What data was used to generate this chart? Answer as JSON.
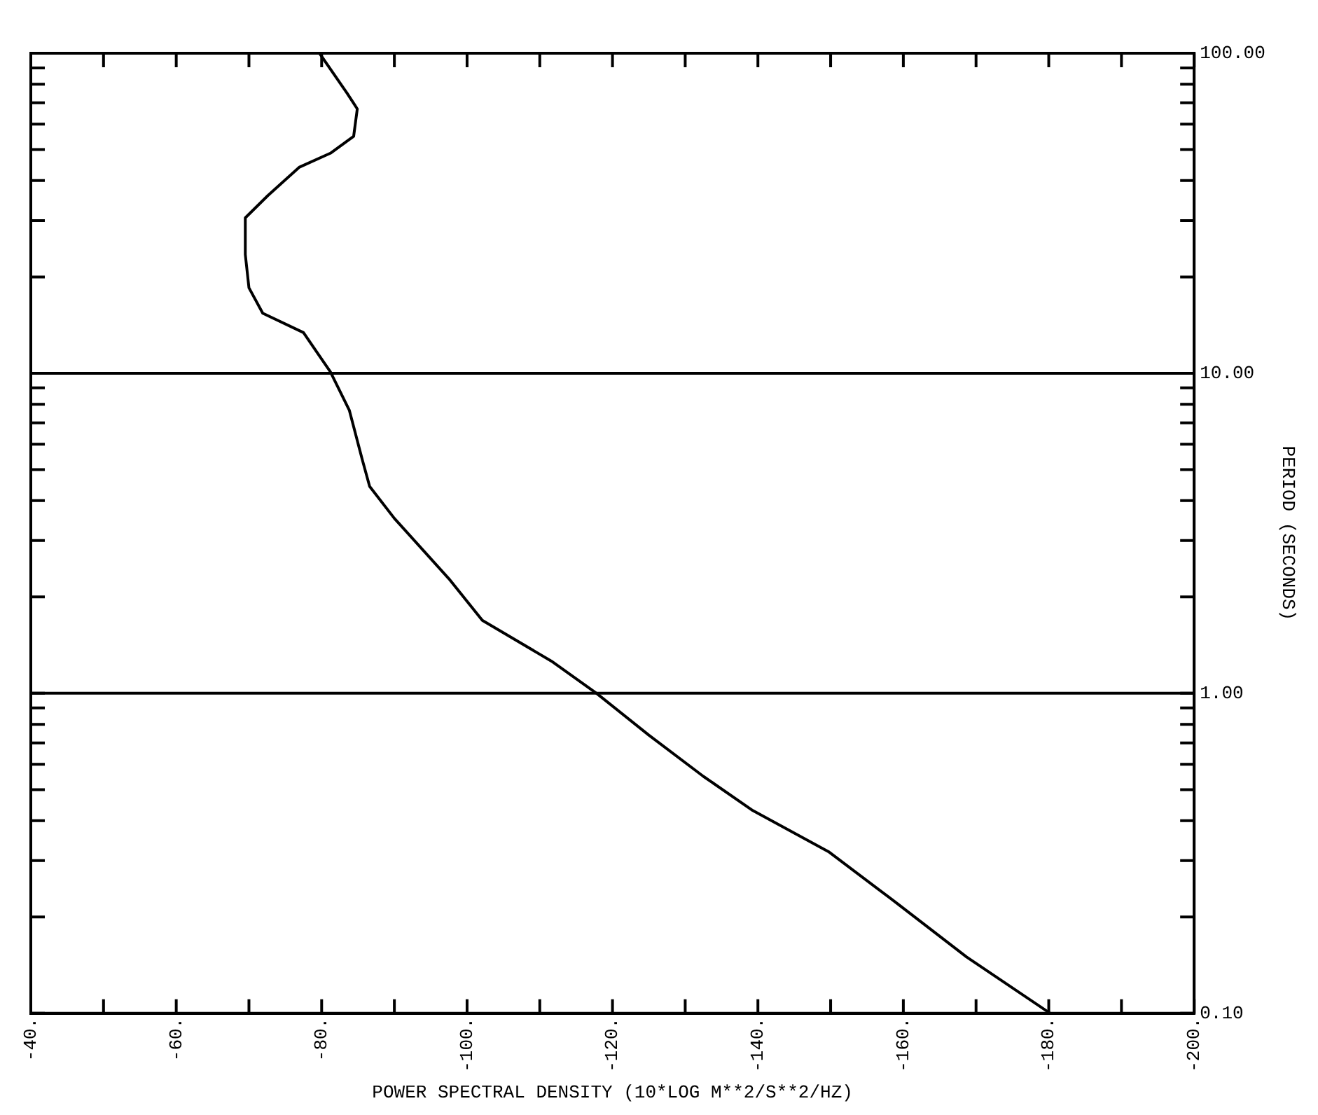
{
  "chart_data": {
    "type": "line",
    "xlabel": "POWER SPECTRAL DENSITY (10*LOG M**2/S**2/HZ)",
    "ylabel": "PERIOD (SECONDS)",
    "x": [
      -180.2,
      -168.7,
      -159.2,
      -149.7,
      -139.3,
      -132.5,
      -125,
      -117.8,
      -111.6,
      -102.1,
      -97.5,
      -90,
      -86.6,
      -85.6,
      -83.8,
      -81.2,
      -77.5,
      -71.9,
      -70,
      -69.5,
      -69.5,
      -72.6,
      -76.9,
      -81.2,
      -84.4,
      -84.9,
      -83.5,
      -79.7
    ],
    "series": [
      {
        "color": "#000000",
        "values": [
          0.1,
          0.15,
          0.22,
          0.32,
          0.43,
          0.55,
          0.74,
          1.0,
          1.26,
          1.69,
          2.28,
          3.52,
          4.43,
          5.36,
          7.67,
          10.1,
          13.4,
          15.4,
          18.5,
          23.5,
          30.6,
          35.9,
          44,
          48.7,
          55,
          67,
          75,
          100
        ]
      }
    ],
    "xlim": [
      -40,
      -200
    ],
    "xticks": [
      {
        "value": -40,
        "label": "-40."
      },
      {
        "value": -50,
        "label": null
      },
      {
        "value": -60,
        "label": "-60."
      },
      {
        "value": -70,
        "label": null
      },
      {
        "value": -80,
        "label": "-80."
      },
      {
        "value": -90,
        "label": null
      },
      {
        "value": -100,
        "label": "-100."
      },
      {
        "value": -110,
        "label": null
      },
      {
        "value": -120,
        "label": "-120."
      },
      {
        "value": -130,
        "label": null
      },
      {
        "value": -140,
        "label": "-140."
      },
      {
        "value": -150,
        "label": null
      },
      {
        "value": -160,
        "label": "-160."
      },
      {
        "value": -170,
        "label": null
      },
      {
        "value": -180,
        "label": "-180."
      },
      {
        "value": -190,
        "label": null
      },
      {
        "value": -200,
        "label": "-200."
      }
    ],
    "ylim": [
      0.1,
      100
    ],
    "yticks": [
      {
        "value": 0.1,
        "label": "0.10"
      },
      {
        "value": 0.2,
        "label": null
      },
      {
        "value": 0.3,
        "label": null
      },
      {
        "value": 0.4,
        "label": null
      },
      {
        "value": 0.5,
        "label": null
      },
      {
        "value": 0.6,
        "label": null
      },
      {
        "value": 0.7,
        "label": null
      },
      {
        "value": 0.8,
        "label": null
      },
      {
        "value": 0.9,
        "label": null
      },
      {
        "value": 1,
        "label": "1.00"
      },
      {
        "value": 2,
        "label": null
      },
      {
        "value": 3,
        "label": null
      },
      {
        "value": 4,
        "label": null
      },
      {
        "value": 5,
        "label": null
      },
      {
        "value": 6,
        "label": null
      },
      {
        "value": 7,
        "label": null
      },
      {
        "value": 8,
        "label": null
      },
      {
        "value": 9,
        "label": null
      },
      {
        "value": 10,
        "label": "10.00"
      },
      {
        "value": 20,
        "label": null
      },
      {
        "value": 30,
        "label": null
      },
      {
        "value": 40,
        "label": null
      },
      {
        "value": 50,
        "label": null
      },
      {
        "value": 60,
        "label": null
      },
      {
        "value": 70,
        "label": null
      },
      {
        "value": 80,
        "label": null
      },
      {
        "value": 90,
        "label": null
      },
      {
        "value": 100,
        "label": "100.00"
      }
    ],
    "log": "y",
    "ref_lines": [
      {
        "axis": "y",
        "value": 1,
        "color": "#000000"
      },
      {
        "axis": "y",
        "value": 10,
        "color": "#000000"
      }
    ],
    "grid": false,
    "legend": false,
    "marker": "none",
    "line_style": "solid"
  }
}
